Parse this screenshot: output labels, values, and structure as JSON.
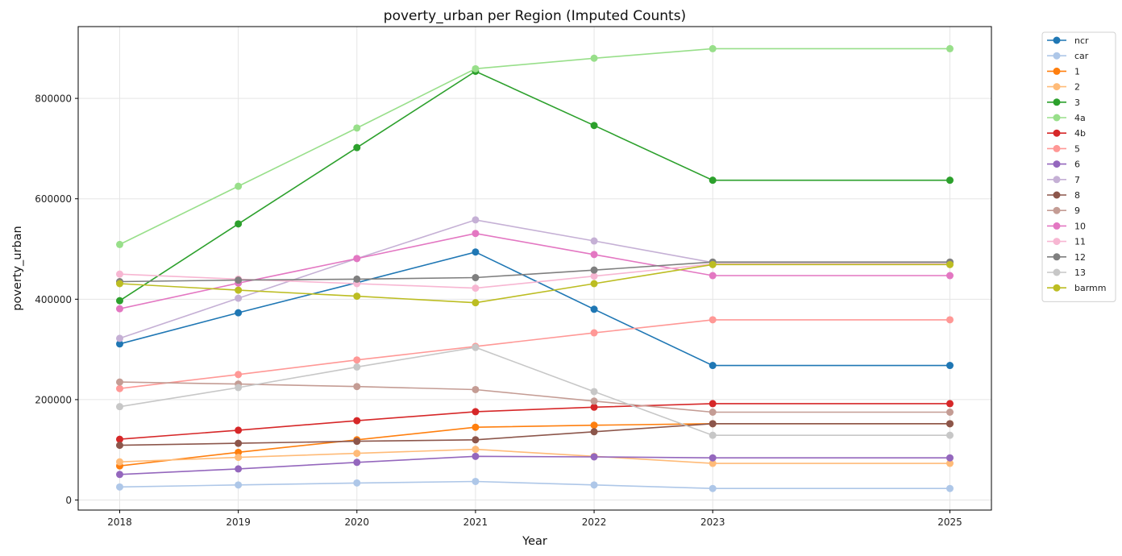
{
  "chart_data": {
    "type": "line",
    "title": "poverty_urban per Region (Imputed Counts)",
    "xlabel": "Year",
    "ylabel": "poverty_urban",
    "x": [
      2018,
      2019,
      2020,
      2021,
      2022,
      2023,
      2025
    ],
    "x_ticks": [
      "2018",
      "2019",
      "2020",
      "2021",
      "2022",
      "2023",
      "2025"
    ],
    "xlim": [
      2017.65,
      2025.35
    ],
    "ylim": [
      -20000,
      943000
    ],
    "y_ticks": [
      0,
      200000,
      400000,
      600000,
      800000
    ],
    "y_tick_labels": [
      "0",
      "200000",
      "400000",
      "600000",
      "800000"
    ],
    "grid": true,
    "legend_position": "outside-right-top",
    "markers": "circle",
    "series": [
      {
        "name": "ncr",
        "color": "#1f77b4",
        "values": [
          311000,
          373000,
          433000,
          494000,
          380000,
          268000,
          268000
        ]
      },
      {
        "name": "car",
        "color": "#aec7e8",
        "values": [
          26000,
          30000,
          34000,
          37000,
          30000,
          23000,
          23000
        ]
      },
      {
        "name": "1",
        "color": "#ff7f0e",
        "values": [
          68000,
          95000,
          120000,
          145000,
          149000,
          152000,
          152000
        ]
      },
      {
        "name": "2",
        "color": "#ffbb78",
        "values": [
          76000,
          85000,
          93000,
          101000,
          87000,
          73000,
          73000
        ]
      },
      {
        "name": "3",
        "color": "#2ca02c",
        "values": [
          397000,
          550000,
          702000,
          854000,
          746000,
          637000,
          637000
        ]
      },
      {
        "name": "4a",
        "color": "#98df8a",
        "values": [
          509000,
          625000,
          741000,
          859000,
          880000,
          899000,
          899000
        ]
      },
      {
        "name": "4b",
        "color": "#d62728",
        "values": [
          121000,
          139000,
          158000,
          176000,
          185000,
          192000,
          192000
        ]
      },
      {
        "name": "5",
        "color": "#ff9896",
        "values": [
          222000,
          250000,
          279000,
          306000,
          333000,
          359000,
          359000
        ]
      },
      {
        "name": "6",
        "color": "#9467bd",
        "values": [
          51000,
          62000,
          75000,
          87000,
          86000,
          84000,
          84000
        ]
      },
      {
        "name": "7",
        "color": "#c5b0d5",
        "values": [
          322000,
          402000,
          481000,
          558000,
          516000,
          473000,
          473000
        ]
      },
      {
        "name": "8",
        "color": "#8c564b",
        "values": [
          109000,
          113000,
          117000,
          120000,
          136000,
          152000,
          152000
        ]
      },
      {
        "name": "9",
        "color": "#c49c94",
        "values": [
          235000,
          231000,
          226000,
          220000,
          197000,
          175000,
          175000
        ]
      },
      {
        "name": "10",
        "color": "#e377c2",
        "values": [
          381000,
          432000,
          481000,
          531000,
          489000,
          447000,
          447000
        ]
      },
      {
        "name": "11",
        "color": "#f7b6d2",
        "values": [
          450000,
          440000,
          431000,
          422000,
          446000,
          470000,
          470000
        ]
      },
      {
        "name": "12",
        "color": "#7f7f7f",
        "values": [
          435000,
          438000,
          440000,
          443000,
          458000,
          474000,
          474000
        ]
      },
      {
        "name": "13",
        "color": "#c7c7c7",
        "values": [
          186000,
          224000,
          265000,
          304000,
          216000,
          129000,
          129000
        ]
      },
      {
        "name": "barmm",
        "color": "#bcbd22",
        "values": [
          431000,
          418000,
          406000,
          393000,
          431000,
          469000,
          469000
        ]
      }
    ]
  }
}
